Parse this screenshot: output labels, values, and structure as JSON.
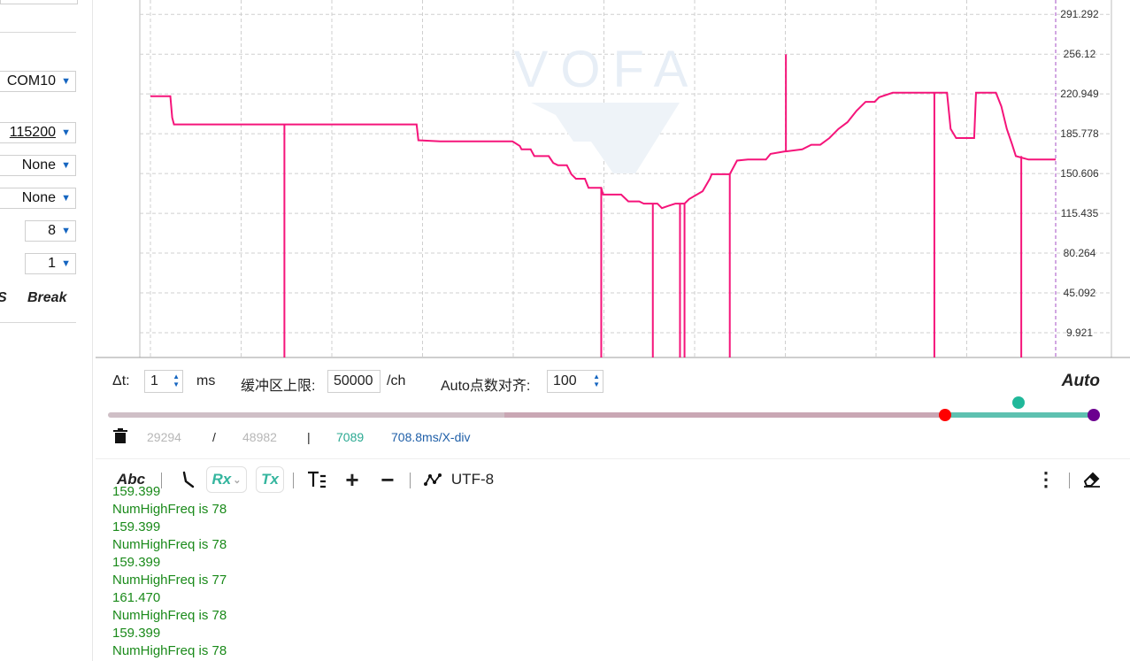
{
  "left_panel": {
    "port": "COM10",
    "baud": "115200",
    "flow_control": "None",
    "parity": "None",
    "data_bits": "8",
    "stop_bits": "1",
    "partial_label": "S",
    "break_label": "Break"
  },
  "chart_data": {
    "type": "line",
    "title": "",
    "xlabel": "",
    "ylabel": "",
    "watermark": "VOFA",
    "y_ticks": [
      "291.292",
      "256.12",
      "220.949",
      "185.778",
      "150.606",
      "115.435",
      "80.264",
      "45.092",
      "9.921"
    ],
    "ylim": [
      -12,
      304
    ],
    "grid": true,
    "series": [
      {
        "color": "#f5147a",
        "points": [
          [
            0,
            219
          ],
          [
            22,
            219
          ],
          [
            24,
            200
          ],
          [
            26,
            194
          ],
          [
            80,
            194
          ],
          [
            140,
            194
          ],
          [
            200,
            194
          ],
          [
            240,
            194
          ],
          [
            294,
            194
          ],
          [
            296,
            180
          ],
          [
            320,
            179
          ],
          [
            380,
            179
          ],
          [
            400,
            179
          ],
          [
            408,
            175
          ],
          [
            410,
            172
          ],
          [
            420,
            172
          ],
          [
            424,
            166
          ],
          [
            440,
            166
          ],
          [
            445,
            160
          ],
          [
            450,
            158
          ],
          [
            460,
            158
          ],
          [
            465,
            150
          ],
          [
            470,
            146
          ],
          [
            480,
            146
          ],
          [
            484,
            138
          ],
          [
            498,
            138
          ],
          [
            500,
            132
          ],
          [
            520,
            132
          ],
          [
            528,
            126
          ],
          [
            540,
            126
          ],
          [
            545,
            124
          ],
          [
            560,
            124
          ],
          [
            565,
            120
          ],
          [
            572,
            122
          ],
          [
            580,
            124
          ],
          [
            590,
            124
          ],
          [
            595,
            128
          ],
          [
            610,
            135
          ],
          [
            618,
            146
          ],
          [
            620,
            150
          ],
          [
            640,
            150
          ],
          [
            648,
            162
          ],
          [
            660,
            163
          ],
          [
            680,
            163
          ],
          [
            685,
            168
          ],
          [
            700,
            170
          ],
          [
            720,
            172
          ],
          [
            730,
            176
          ],
          [
            740,
            176
          ],
          [
            750,
            182
          ],
          [
            760,
            190
          ],
          [
            770,
            196
          ],
          [
            780,
            206
          ],
          [
            790,
            214
          ],
          [
            800,
            214
          ],
          [
            805,
            218
          ],
          [
            820,
            222
          ],
          [
            880,
            222
          ],
          [
            884,
            190
          ],
          [
            890,
            182
          ],
          [
            910,
            182
          ],
          [
            912,
            222
          ],
          [
            934,
            222
          ],
          [
            940,
            210
          ],
          [
            946,
            190
          ],
          [
            952,
            176
          ],
          [
            956,
            166
          ],
          [
            970,
            163
          ],
          [
            1000,
            163
          ]
        ],
        "spikes": [
          {
            "x": 148,
            "to": -12
          },
          {
            "x": 498,
            "to": -12
          },
          {
            "x": 555,
            "to": -12
          },
          {
            "x": 585,
            "to": -12
          },
          {
            "x": 590,
            "to": -12
          },
          {
            "x": 640,
            "to": -12
          },
          {
            "x": 866,
            "to": -12
          },
          {
            "x": 962,
            "to": -12
          },
          {
            "x": 702,
            "to": 256
          }
        ]
      }
    ]
  },
  "controls": {
    "dt_label": "Δt:",
    "dt_value": "1",
    "dt_unit": "ms",
    "buffer_label": "缓冲区上限:",
    "buffer_value": "50000",
    "buffer_unit": "/ch",
    "auto_align_label": "Auto点数对齐:",
    "auto_align_value": "100",
    "auto_label": "Auto"
  },
  "slider": {
    "colors": {
      "left": "#ff0000",
      "center": "#20b89a",
      "right": "#6b008f"
    }
  },
  "stats": {
    "visible_points": "29294",
    "slash": "/",
    "total_points": "48982",
    "pipe": "|",
    "sample_count": "7089",
    "x_div": "708.8ms/X-div"
  },
  "toolbar": {
    "abc": "Abc",
    "rx": "Rx",
    "tx": "Tx",
    "encoding": "UTF-8"
  },
  "log_lines": [
    "159.399",
    "NumHighFreq is 78",
    "159.399",
    "NumHighFreq is 78",
    "159.399",
    "NumHighFreq is 77",
    "161.470",
    "NumHighFreq is 78",
    "159.399",
    "NumHighFreq is 78"
  ]
}
